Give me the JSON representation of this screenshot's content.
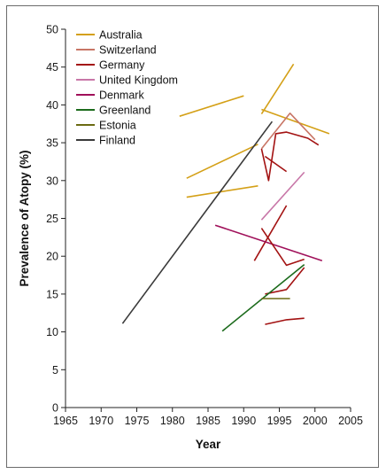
{
  "chart_data": {
    "type": "line",
    "title": "",
    "xlabel": "Year",
    "ylabel": "Prevalence of Atopy (%)",
    "xlim": [
      1965,
      2005
    ],
    "ylim": [
      0,
      50
    ],
    "x_ticks": [
      1965,
      1970,
      1975,
      1980,
      1985,
      1990,
      1995,
      2000,
      2005
    ],
    "y_ticks": [
      0,
      5,
      10,
      15,
      20,
      25,
      30,
      35,
      40,
      45,
      50
    ],
    "grid": false,
    "legend_position": "top-left",
    "series": [
      {
        "name": "Australia",
        "color": "#d4a017",
        "segments": [
          [
            [
              1981,
              38.5
            ],
            [
              1990,
              41.2
            ]
          ],
          [
            [
              1982,
              30.3
            ],
            [
              1992,
              34.8
            ]
          ],
          [
            [
              1982,
              27.8
            ],
            [
              1992,
              29.3
            ]
          ],
          [
            [
              1992.5,
              38.8
            ],
            [
              1997,
              45.4
            ]
          ],
          [
            [
              1992.5,
              39.4
            ],
            [
              2002,
              36.2
            ]
          ]
        ]
      },
      {
        "name": "Switzerland",
        "color": "#c87565",
        "segments": [
          [
            [
              1992.5,
              34.2
            ],
            [
              1996.5,
              38.9
            ],
            [
              2000,
              35.4
            ]
          ]
        ]
      },
      {
        "name": "Germany",
        "color": "#a31212",
        "segments": [
          [
            [
              1992.5,
              34.2
            ],
            [
              1993.5,
              30.0
            ],
            [
              1994.5,
              36.2
            ],
            [
              1996,
              36.4
            ],
            [
              1999,
              35.6
            ],
            [
              2000.5,
              34.7
            ]
          ],
          [
            [
              1993,
              33.2
            ],
            [
              1996,
              31.2
            ]
          ],
          [
            [
              1991.5,
              19.4
            ],
            [
              1996,
              26.7
            ]
          ],
          [
            [
              1993,
              15.0
            ],
            [
              1996,
              15.6
            ],
            [
              1998.5,
              18.5
            ]
          ],
          [
            [
              1993,
              11.0
            ],
            [
              1996,
              11.6
            ],
            [
              1998.5,
              11.8
            ]
          ]
        ]
      },
      {
        "name": "United Kingdom",
        "color": "#c877a8",
        "segments": [
          [
            [
              1992.5,
              24.8
            ],
            [
              1998.5,
              31.1
            ]
          ]
        ]
      },
      {
        "name": "Denmark",
        "color": "#a0105a",
        "segments": [
          [
            [
              1986,
              24.1
            ],
            [
              2001,
              19.4
            ]
          ]
        ]
      },
      {
        "name": "Greenland",
        "color": "#1c6b1c",
        "segments": [
          [
            [
              1987,
              10.1
            ],
            [
              1998.5,
              18.9
            ]
          ]
        ]
      },
      {
        "name": "Estonia",
        "color": "#6b6b12",
        "segments": [
          [
            [
              1992.5,
              14.4
            ],
            [
              1996.5,
              14.4
            ]
          ]
        ]
      },
      {
        "name": "Finland",
        "color": "#3a3a3a",
        "segments": [
          [
            [
              1973,
              11.1
            ],
            [
              1994,
              37.8
            ]
          ]
        ]
      }
    ],
    "extra_segments": [
      {
        "color": "#a31212",
        "points": [
          [
            1992.5,
            23.7
          ],
          [
            1996,
            18.8
          ],
          [
            1998.5,
            19.6
          ]
        ]
      }
    ]
  }
}
